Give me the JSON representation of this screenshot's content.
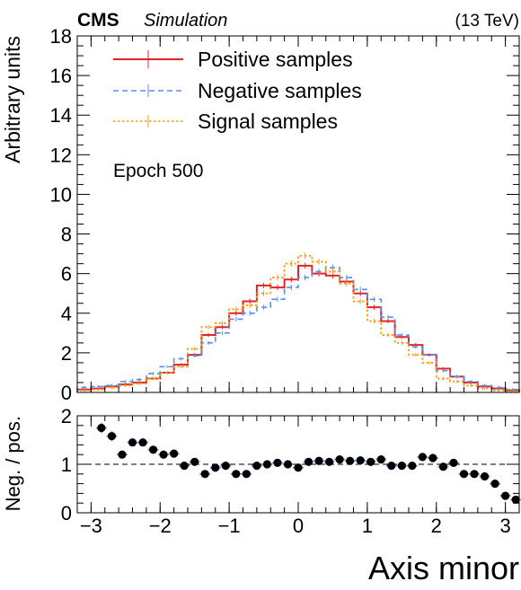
{
  "header": {
    "experiment": "CMS",
    "label": "Simulation",
    "energy": "(13 TeV)"
  },
  "annotation": "Epoch 500",
  "colors": {
    "positive": "#e3242b",
    "negative": "#5b8ee6",
    "signal": "#f39c12",
    "ratio_points": "#000000",
    "ratio_errors": "#6fa0e8"
  },
  "chart_data": [
    {
      "type": "line",
      "title": "",
      "xlabel": "Axis minor",
      "ylabel": "Arbitrary units",
      "xlim": [
        -3.2,
        3.2
      ],
      "ylim": [
        0,
        18
      ],
      "xticks": [
        -3,
        -2,
        -1,
        0,
        1,
        2,
        3
      ],
      "yticks": [
        0,
        2,
        4,
        6,
        8,
        10,
        12,
        14,
        16,
        18
      ],
      "legend_position": "top-left",
      "grid": false,
      "bin_edges": [
        -3.2,
        -3.0,
        -2.8,
        -2.6,
        -2.4,
        -2.2,
        -2.0,
        -1.8,
        -1.6,
        -1.4,
        -1.2,
        -1.0,
        -0.8,
        -0.6,
        -0.4,
        -0.2,
        0.0,
        0.2,
        0.4,
        0.6,
        0.8,
        1.0,
        1.2,
        1.4,
        1.6,
        1.8,
        2.0,
        2.2,
        2.4,
        2.6,
        2.8,
        3.0,
        3.2
      ],
      "series": [
        {
          "name": "Positive samples",
          "style": "solid",
          "values": [
            0.15,
            0.2,
            0.3,
            0.4,
            0.5,
            0.7,
            1.0,
            1.4,
            1.9,
            2.9,
            3.3,
            4.0,
            4.6,
            5.4,
            5.3,
            5.7,
            6.4,
            6.0,
            5.9,
            5.6,
            5.0,
            4.3,
            3.6,
            2.8,
            2.4,
            1.9,
            1.2,
            0.8,
            0.5,
            0.3,
            0.2,
            0.1
          ]
        },
        {
          "name": "Negative samples",
          "style": "dashed",
          "values": [
            0.25,
            0.3,
            0.35,
            0.55,
            0.65,
            0.95,
            1.3,
            1.7,
            1.85,
            2.5,
            3.0,
            3.7,
            4.0,
            4.3,
            4.7,
            5.3,
            5.8,
            6.1,
            6.3,
            5.8,
            5.2,
            4.7,
            3.8,
            2.9,
            2.3,
            1.9,
            1.1,
            0.8,
            0.55,
            0.35,
            0.25,
            0.15
          ]
        },
        {
          "name": "Signal samples",
          "style": "dotted",
          "values": [
            0.1,
            0.15,
            0.25,
            0.35,
            0.45,
            0.7,
            1.0,
            1.3,
            2.2,
            3.3,
            3.5,
            4.2,
            4.4,
            5.0,
            5.8,
            6.5,
            6.9,
            6.6,
            6.1,
            5.5,
            4.6,
            3.6,
            2.9,
            2.5,
            1.9,
            1.5,
            0.7,
            0.55,
            0.35,
            0.2,
            0.1,
            0.05
          ]
        }
      ]
    },
    {
      "type": "scatter",
      "title": "",
      "xlabel": "Axis minor",
      "ylabel": "Neg. / pos.",
      "xlim": [
        -3.2,
        3.2
      ],
      "ylim": [
        0,
        2
      ],
      "xticks": [
        -3,
        -2,
        -1,
        0,
        1,
        2,
        3
      ],
      "yticks": [
        0,
        1,
        2
      ],
      "reference_line": 1,
      "x": [
        -2.85,
        -2.7,
        -2.55,
        -2.4,
        -2.25,
        -2.1,
        -1.95,
        -1.8,
        -1.65,
        -1.5,
        -1.35,
        -1.2,
        -1.05,
        -0.9,
        -0.75,
        -0.6,
        -0.45,
        -0.3,
        -0.15,
        0.0,
        0.15,
        0.3,
        0.45,
        0.6,
        0.75,
        0.9,
        1.05,
        1.2,
        1.35,
        1.5,
        1.65,
        1.8,
        1.95,
        2.1,
        2.25,
        2.4,
        2.55,
        2.7,
        2.85,
        3.0,
        3.15
      ],
      "y": [
        1.75,
        1.58,
        1.2,
        1.45,
        1.45,
        1.3,
        1.2,
        1.22,
        0.97,
        1.05,
        0.8,
        0.93,
        0.97,
        0.8,
        0.8,
        0.97,
        1.0,
        1.03,
        1.0,
        0.93,
        1.05,
        1.07,
        1.05,
        1.1,
        1.07,
        1.08,
        1.05,
        1.1,
        0.97,
        0.97,
        0.97,
        1.15,
        1.13,
        0.95,
        1.03,
        0.8,
        0.8,
        0.75,
        0.6,
        0.35,
        0.27
      ],
      "yerr": [
        0.1,
        0.1,
        0.08,
        0.08,
        0.08,
        0.07,
        0.06,
        0.06,
        0.05,
        0.05,
        0.04,
        0.04,
        0.04,
        0.03,
        0.03,
        0.03,
        0.03,
        0.03,
        0.03,
        0.03,
        0.03,
        0.03,
        0.03,
        0.03,
        0.03,
        0.03,
        0.03,
        0.03,
        0.04,
        0.04,
        0.04,
        0.05,
        0.05,
        0.05,
        0.06,
        0.06,
        0.07,
        0.07,
        0.08,
        0.08,
        0.08
      ]
    }
  ]
}
